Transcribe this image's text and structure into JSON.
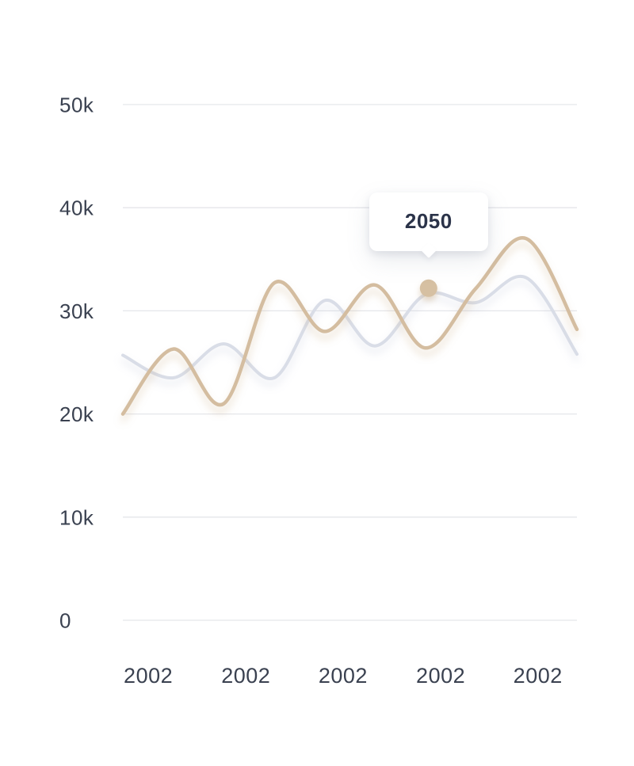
{
  "chart_data": {
    "type": "line",
    "x_index": [
      0,
      1,
      2,
      3,
      4,
      5,
      6,
      7,
      8,
      9
    ],
    "series": [
      {
        "name": "series-1-tan",
        "color": "#d4bda0",
        "shadow_color": "#c9ab83",
        "values": [
          20000,
          26300,
          21000,
          32700,
          28000,
          32500,
          26400,
          32200,
          37000,
          28200
        ]
      },
      {
        "name": "series-2-gray",
        "color": "#d9dde7",
        "shadow_color": "#b9c0d3",
        "values": [
          25700,
          23500,
          26800,
          23500,
          31000,
          26600,
          31600,
          30800,
          33200,
          25800
        ]
      }
    ],
    "y_ticks": [
      {
        "label": "0",
        "value": 0
      },
      {
        "label": "10k",
        "value": 10000
      },
      {
        "label": "20k",
        "value": 20000
      },
      {
        "label": "30k",
        "value": 30000
      },
      {
        "label": "40k",
        "value": 40000
      },
      {
        "label": "50k",
        "value": 50000
      }
    ],
    "x_ticks": [
      {
        "label": "2002",
        "pos": 0.056
      },
      {
        "label": "2002",
        "pos": 0.271
      },
      {
        "label": "2002",
        "pos": 0.485
      },
      {
        "label": "2002",
        "pos": 0.7
      },
      {
        "label": "2002",
        "pos": 0.914
      }
    ],
    "ylim": [
      0,
      50000
    ],
    "xlim": [
      0,
      9
    ],
    "grid": true,
    "legend": "none",
    "smooth": true,
    "marker": {
      "x_index": 6.06,
      "value": 32200,
      "color": "#d6c0a2"
    },
    "tooltip": {
      "label": "2050"
    }
  },
  "colors": {
    "background": "#ffffff",
    "gridline": "#e5e6ea",
    "axis_text": "#3a4150",
    "tooltip_text": "#2b3349",
    "tooltip_bg": "#ffffff"
  }
}
